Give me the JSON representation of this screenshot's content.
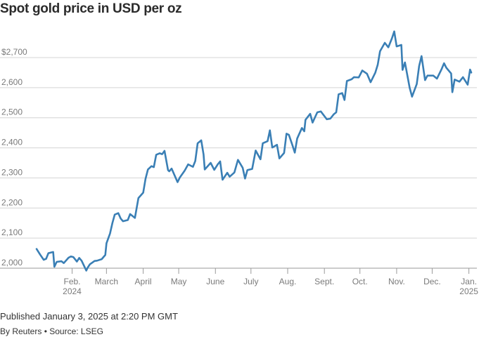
{
  "chart_data": {
    "type": "line",
    "title": "Spot gold price in USD per oz",
    "xlabel": "",
    "ylabel": "",
    "ylim": [
      1990,
      2790
    ],
    "xlim": [
      "2024-01-02",
      "2025-01-03"
    ],
    "y_ticks": [
      2000,
      2100,
      2200,
      2300,
      2400,
      2500,
      2600,
      2700
    ],
    "y_tick_labels": [
      "2,000",
      "2,100",
      "2,200",
      "2,300",
      "2,400",
      "2,500",
      "2,600",
      "$2,700"
    ],
    "x_ticks": [
      {
        "date": "2024-02-01",
        "label": "Feb.",
        "sublabel": "2024"
      },
      {
        "date": "2024-03-01",
        "label": "March",
        "sublabel": ""
      },
      {
        "date": "2024-04-01",
        "label": "April",
        "sublabel": ""
      },
      {
        "date": "2024-05-01",
        "label": "May",
        "sublabel": ""
      },
      {
        "date": "2024-06-01",
        "label": "June",
        "sublabel": ""
      },
      {
        "date": "2024-07-01",
        "label": "July",
        "sublabel": ""
      },
      {
        "date": "2024-08-01",
        "label": "Aug.",
        "sublabel": ""
      },
      {
        "date": "2024-09-01",
        "label": "Sept.",
        "sublabel": ""
      },
      {
        "date": "2024-10-01",
        "label": "Oct.",
        "sublabel": ""
      },
      {
        "date": "2024-11-01",
        "label": "Nov.",
        "sublabel": ""
      },
      {
        "date": "2024-12-01",
        "label": "Dec.",
        "sublabel": ""
      },
      {
        "date": "2025-01-01",
        "label": "Jan.",
        "sublabel": "2025"
      }
    ],
    "grid": "horizontal",
    "line_color": "#3a7fb5",
    "series": [
      {
        "x": [
          "2024-01-02",
          "2024-01-05",
          "2024-01-08",
          "2024-01-10",
          "2024-01-12",
          "2024-01-16",
          "2024-01-17",
          "2024-01-19",
          "2024-01-23",
          "2024-01-25",
          "2024-01-29",
          "2024-01-31",
          "2024-02-02",
          "2024-02-05",
          "2024-02-07",
          "2024-02-09",
          "2024-02-13",
          "2024-02-14",
          "2024-02-16",
          "2024-02-20",
          "2024-02-22",
          "2024-02-26",
          "2024-02-29",
          "2024-03-01",
          "2024-03-04",
          "2024-03-06",
          "2024-03-08",
          "2024-03-11",
          "2024-03-13",
          "2024-03-15",
          "2024-03-19",
          "2024-03-21",
          "2024-03-25",
          "2024-03-28",
          "2024-04-01",
          "2024-04-03",
          "2024-04-05",
          "2024-04-08",
          "2024-04-10",
          "2024-04-12",
          "2024-04-15",
          "2024-04-17",
          "2024-04-19",
          "2024-04-22",
          "2024-04-23",
          "2024-04-25",
          "2024-04-30",
          "2024-05-02",
          "2024-05-06",
          "2024-05-09",
          "2024-05-13",
          "2024-05-15",
          "2024-05-17",
          "2024-05-20",
          "2024-05-22",
          "2024-05-23",
          "2024-05-28",
          "2024-05-31",
          "2024-06-03",
          "2024-06-05",
          "2024-06-07",
          "2024-06-11",
          "2024-06-13",
          "2024-06-17",
          "2024-06-20",
          "2024-06-24",
          "2024-06-26",
          "2024-06-28",
          "2024-07-02",
          "2024-07-05",
          "2024-07-09",
          "2024-07-11",
          "2024-07-15",
          "2024-07-17",
          "2024-07-19",
          "2024-07-23",
          "2024-07-25",
          "2024-07-29",
          "2024-07-31",
          "2024-08-02",
          "2024-08-05",
          "2024-08-07",
          "2024-08-09",
          "2024-08-13",
          "2024-08-15",
          "2024-08-16",
          "2024-08-20",
          "2024-08-22",
          "2024-08-26",
          "2024-08-29",
          "2024-09-03",
          "2024-09-06",
          "2024-09-09",
          "2024-09-11",
          "2024-09-13",
          "2024-09-16",
          "2024-09-18",
          "2024-09-20",
          "2024-09-24",
          "2024-09-26",
          "2024-09-30",
          "2024-10-03",
          "2024-10-07",
          "2024-10-10",
          "2024-10-14",
          "2024-10-16",
          "2024-10-18",
          "2024-10-22",
          "2024-10-25",
          "2024-10-28",
          "2024-10-30",
          "2024-11-01",
          "2024-11-05",
          "2024-11-06",
          "2024-11-08",
          "2024-11-12",
          "2024-11-14",
          "2024-11-18",
          "2024-11-20",
          "2024-11-22",
          "2024-11-25",
          "2024-11-27",
          "2024-12-02",
          "2024-12-05",
          "2024-12-09",
          "2024-12-11",
          "2024-12-13",
          "2024-12-17",
          "2024-12-18",
          "2024-12-20",
          "2024-12-24",
          "2024-12-27",
          "2024-12-31",
          "2025-01-02",
          "2025-01-03"
        ],
        "values": [
          2064,
          2045,
          2028,
          2031,
          2050,
          2054,
          2005,
          2021,
          2023,
          2017,
          2035,
          2039,
          2037,
          2022,
          2034,
          2025,
          1992,
          2001,
          2013,
          2024,
          2025,
          2030,
          2044,
          2083,
          2115,
          2150,
          2178,
          2183,
          2165,
          2156,
          2160,
          2180,
          2167,
          2233,
          2251,
          2297,
          2328,
          2339,
          2336,
          2377,
          2382,
          2379,
          2390,
          2326,
          2322,
          2331,
          2286,
          2302,
          2324,
          2345,
          2337,
          2356,
          2415,
          2425,
          2378,
          2328,
          2350,
          2327,
          2345,
          2355,
          2294,
          2317,
          2304,
          2318,
          2360,
          2334,
          2298,
          2326,
          2330,
          2391,
          2362,
          2415,
          2422,
          2458,
          2401,
          2410,
          2365,
          2383,
          2447,
          2443,
          2409,
          2384,
          2431,
          2466,
          2455,
          2493,
          2513,
          2484,
          2518,
          2521,
          2495,
          2497,
          2512,
          2518,
          2578,
          2582,
          2559,
          2622,
          2628,
          2635,
          2634,
          2657,
          2646,
          2618,
          2650,
          2676,
          2721,
          2749,
          2734,
          2764,
          2787,
          2737,
          2742,
          2659,
          2684,
          2600,
          2570,
          2612,
          2672,
          2705,
          2625,
          2640,
          2640,
          2630,
          2662,
          2681,
          2666,
          2647,
          2585,
          2627,
          2620,
          2635,
          2610,
          2660,
          2650
        ]
      }
    ]
  },
  "footer": {
    "published": "Published January 3, 2025 at 2:20 PM GMT",
    "byline": "By Reuters • Source: LSEG"
  }
}
